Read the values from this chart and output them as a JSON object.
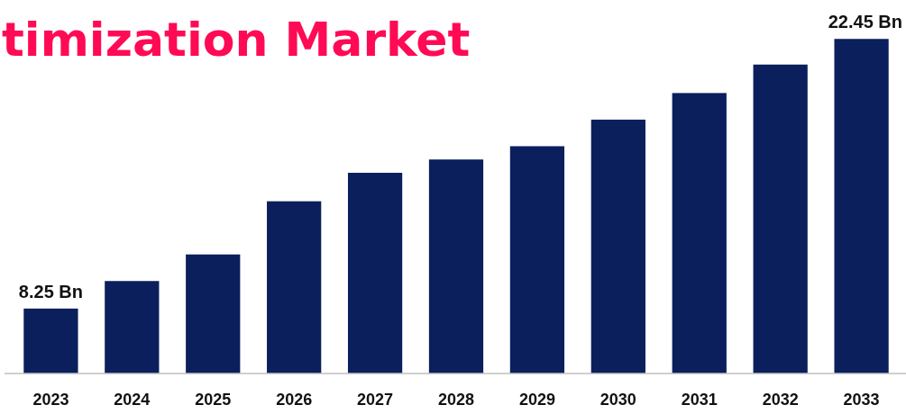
{
  "chart_data": {
    "type": "bar",
    "title": "timization Market",
    "categories": [
      "2023",
      "2024",
      "2025",
      "2026",
      "2027",
      "2028",
      "2029",
      "2030",
      "2031",
      "2032",
      "2033"
    ],
    "values": [
      8.25,
      9.7,
      11.1,
      13.9,
      15.4,
      16.1,
      16.8,
      18.2,
      19.6,
      21.1,
      22.45
    ],
    "value_labels": [
      "8.25 Bn",
      null,
      null,
      null,
      null,
      null,
      null,
      null,
      null,
      null,
      "22.45 Bn"
    ],
    "color": "#0b1f5c",
    "ylim": [
      4.83,
      24.5
    ]
  }
}
